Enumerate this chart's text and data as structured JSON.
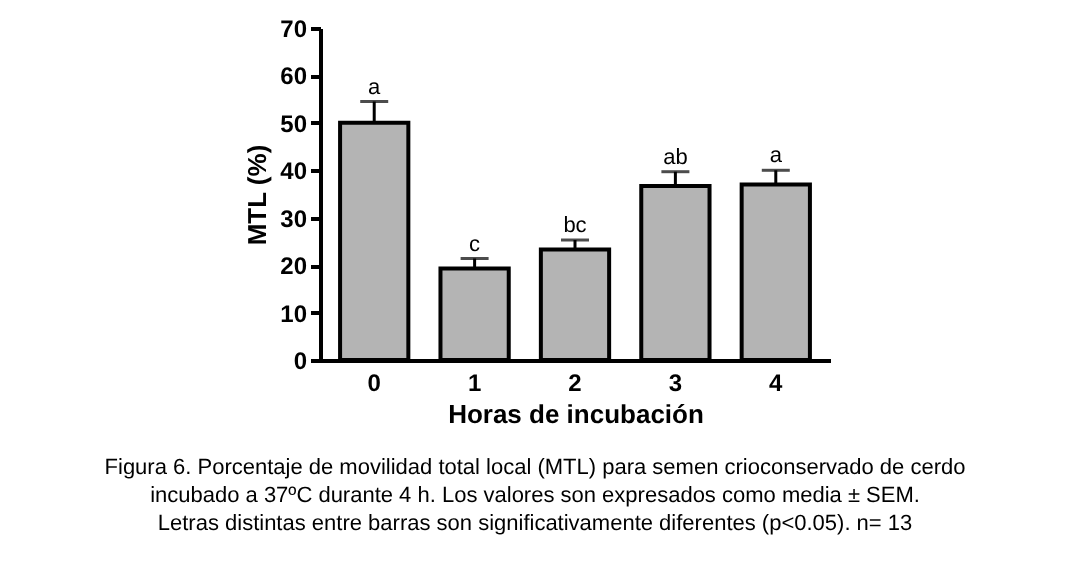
{
  "chart_data": {
    "type": "bar",
    "xlabel": "Horas de incubación",
    "ylabel": "MTL (%)",
    "categories": [
      "0",
      "1",
      "2",
      "3",
      "4"
    ],
    "values": [
      50,
      19.3,
      23.3,
      36.7,
      37
    ],
    "errors": [
      4.5,
      2.1,
      2,
      3,
      3
    ],
    "color": "#b4b4b4",
    "ylim": [
      0,
      70
    ],
    "yticks": [
      0,
      10,
      20,
      30,
      40,
      50,
      60,
      70
    ],
    "grid": false,
    "annotations": [
      {
        "text": "a",
        "x": "0",
        "y": 54.5
      },
      {
        "text": "c",
        "x": "1",
        "y": 21.4
      },
      {
        "text": "bc",
        "x": "2",
        "y": 25.3
      },
      {
        "text": "ab",
        "x": "3",
        "y": 39.7
      },
      {
        "text": "a",
        "x": "4",
        "y": 40
      },
      "Figura 6. Porcentaje de movilidad total local (MTL) para semen crioconservado de cerdo",
      "incubado a 37ºC durante 4 h. Los valores son expresados como media ± SEM.",
      "Letras distintas entre barras son significativamente diferentes (p<0.05). n= 13"
    ]
  }
}
